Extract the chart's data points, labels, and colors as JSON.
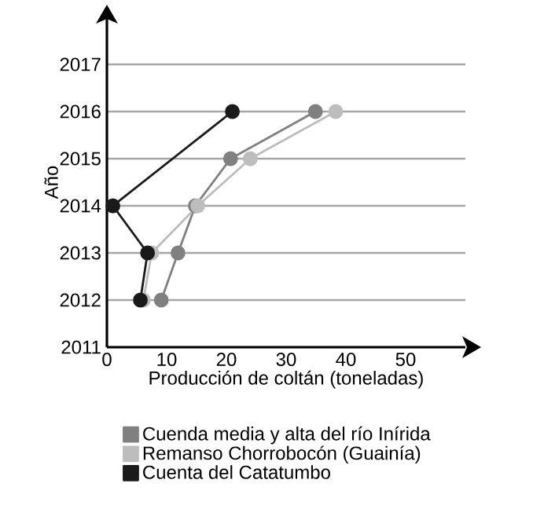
{
  "chart_data": {
    "type": "line",
    "xlabel": "Producción de coltán (toneladas)",
    "ylabel": "Año",
    "xlim": [
      0,
      60
    ],
    "ylim": [
      2011,
      2018
    ],
    "xticks": [
      0,
      10,
      20,
      30,
      40,
      50
    ],
    "yticks": [
      2011,
      2012,
      2013,
      2014,
      2015,
      2016,
      2017
    ],
    "grid": "y",
    "legend": "bottom",
    "marker": "circle",
    "line_style": "solid",
    "series": [
      {
        "name": "Cuenda media y alta del río Inírida",
        "color": "#808080",
        "x": [
          9.1,
          11.9,
          14.8,
          20.7,
          34.9
        ],
        "values": [
          2012,
          2013,
          2014,
          2015,
          2016
        ]
      },
      {
        "name": "Remanso Chorrobocón (Guainía)",
        "color": "#bdbdbd",
        "x": [
          6.1,
          7.5,
          15.2,
          24,
          38.3
        ],
        "values": [
          2012,
          2013,
          2014,
          2015,
          2016
        ]
      },
      {
        "name": "Cuenta del Catatumbo",
        "color": "#1a1a1a",
        "x": [
          5.6,
          6.8,
          1,
          21
        ],
        "values": [
          2012,
          2013,
          2014,
          2016
        ]
      }
    ]
  }
}
